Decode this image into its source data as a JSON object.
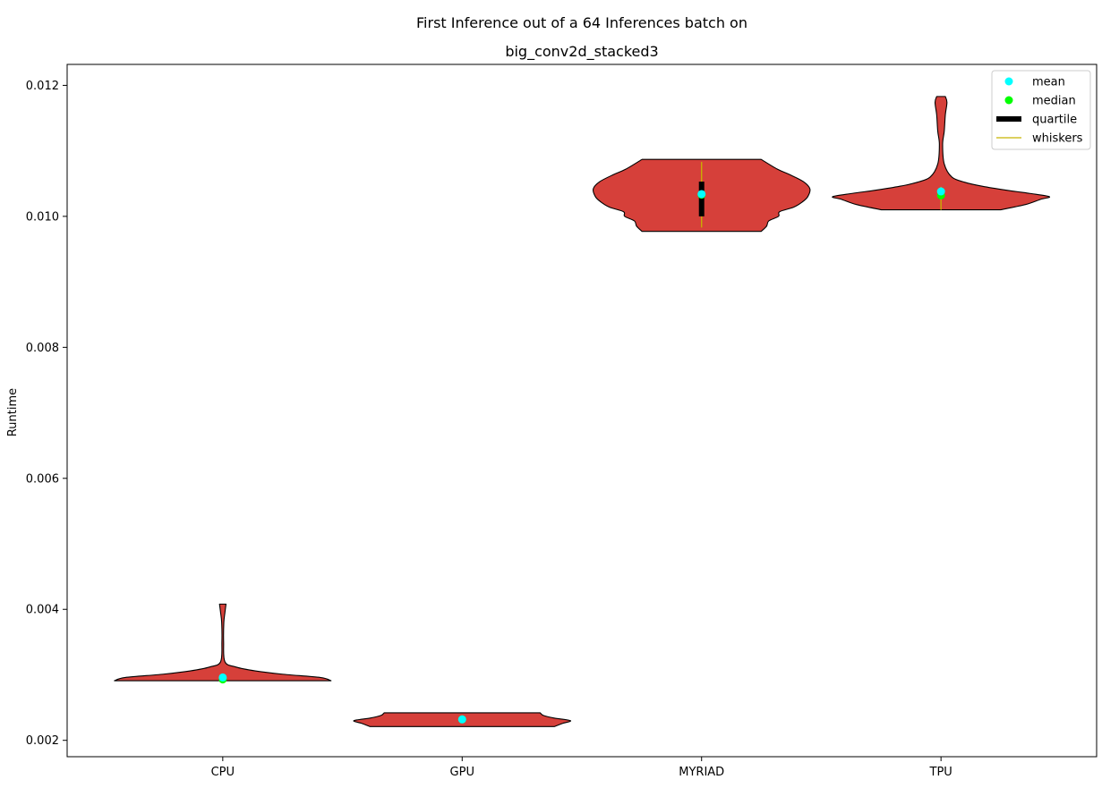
{
  "chart_data": {
    "type": "violin",
    "title_line1": "First Inference out of a 64 Inferences batch on",
    "title_line2": "big_conv2d_stacked3",
    "xlabel": "",
    "ylabel": "Runtime",
    "ylim": [
      0.00175,
      0.01232
    ],
    "yticks": [
      0.002,
      0.004,
      0.006,
      0.008,
      0.01,
      0.012
    ],
    "ytick_labels": [
      "0.002",
      "0.004",
      "0.006",
      "0.008",
      "0.010",
      "0.012"
    ],
    "categories": [
      "CPU",
      "GPU",
      "MYRIAD",
      "TPU"
    ],
    "violin_color": "#d6403a",
    "mean_color": "#00ffff",
    "median_color": "#00ff00",
    "quartile_color": "#000000",
    "whisker_color": "#c8b400",
    "legend": {
      "placement": "top-right",
      "entries": [
        {
          "label": "mean",
          "kind": "dot",
          "color": "#00ffff"
        },
        {
          "label": "median",
          "kind": "dot",
          "color": "#00ff00"
        },
        {
          "label": "quartile",
          "kind": "bar",
          "color": "#000000"
        },
        {
          "label": "whiskers",
          "kind": "line",
          "color": "#c8b400"
        }
      ]
    },
    "series": [
      {
        "name": "CPU",
        "mean": 0.00296,
        "median": 0.00293,
        "q1": 0.00292,
        "q3": 0.00296,
        "whisker_low": 0.00291,
        "whisker_high": 0.003,
        "profile": [
          [
            0.00291,
            1.0
          ],
          [
            0.00296,
            0.9
          ],
          [
            0.00301,
            0.55
          ],
          [
            0.00306,
            0.3
          ],
          [
            0.00312,
            0.12
          ],
          [
            0.0032,
            0.02
          ],
          [
            0.0035,
            0.008
          ],
          [
            0.0038,
            0.01
          ],
          [
            0.00395,
            0.02
          ],
          [
            0.00408,
            0.03
          ]
        ]
      },
      {
        "name": "GPU",
        "mean": 0.00232,
        "median": 0.00232,
        "q1": 0.00231,
        "q3": 0.00233,
        "whisker_low": 0.0023,
        "whisker_high": 0.00234,
        "profile": [
          [
            0.00221,
            0.85
          ],
          [
            0.00226,
            0.93
          ],
          [
            0.0023,
            1.0
          ],
          [
            0.00234,
            0.85
          ],
          [
            0.00238,
            0.75
          ],
          [
            0.00242,
            0.72
          ]
        ]
      },
      {
        "name": "MYRIAD",
        "mean": 0.01034,
        "median": 0.01033,
        "q1": 0.01,
        "q3": 0.01053,
        "whisker_low": 0.00983,
        "whisker_high": 0.01083,
        "profile": [
          [
            0.00977,
            0.55
          ],
          [
            0.00985,
            0.6
          ],
          [
            0.00993,
            0.62
          ],
          [
            0.01,
            0.71
          ],
          [
            0.01007,
            0.72
          ],
          [
            0.01014,
            0.85
          ],
          [
            0.01022,
            0.93
          ],
          [
            0.0103,
            0.98
          ],
          [
            0.01042,
            1.0
          ],
          [
            0.01053,
            0.94
          ],
          [
            0.01064,
            0.81
          ],
          [
            0.01072,
            0.7
          ],
          [
            0.01087,
            0.55
          ]
        ]
      },
      {
        "name": "TPU",
        "mean": 0.01038,
        "median": 0.01032,
        "q1": 0.01027,
        "q3": 0.0104,
        "whisker_low": 0.0101,
        "whisker_high": 0.01045,
        "profile": [
          [
            0.0101,
            0.55
          ],
          [
            0.01018,
            0.78
          ],
          [
            0.01026,
            0.92
          ],
          [
            0.0103,
            1.0
          ],
          [
            0.01035,
            0.82
          ],
          [
            0.0104,
            0.6
          ],
          [
            0.01046,
            0.38
          ],
          [
            0.01052,
            0.22
          ],
          [
            0.0106,
            0.1
          ],
          [
            0.0108,
            0.03
          ],
          [
            0.0111,
            0.015
          ],
          [
            0.0113,
            0.03
          ],
          [
            0.01155,
            0.04
          ],
          [
            0.01174,
            0.055
          ],
          [
            0.01183,
            0.04
          ]
        ]
      }
    ]
  }
}
